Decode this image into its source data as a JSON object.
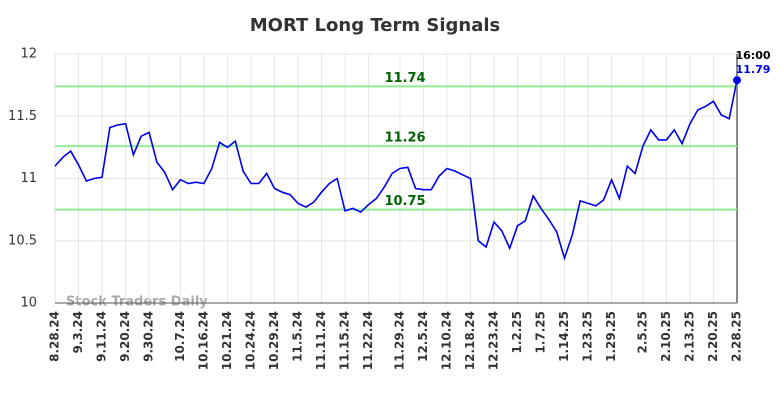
{
  "chart_data": {
    "type": "line",
    "title": "MORT Long Term Signals",
    "categories": [
      "8.28.24",
      null,
      null,
      "9.3.24",
      null,
      null,
      "9.11.24",
      null,
      null,
      "9.20.24",
      null,
      null,
      "9.30.24",
      null,
      null,
      null,
      "10.7.24",
      null,
      null,
      "10.16.24",
      null,
      null,
      "10.21.24",
      null,
      null,
      "10.24.24",
      null,
      null,
      "10.29.24",
      null,
      null,
      "11.5.24",
      null,
      null,
      "11.11.24",
      null,
      null,
      "11.15.24",
      null,
      null,
      "11.22.24",
      null,
      null,
      null,
      "11.29.24",
      null,
      null,
      "12.5.24",
      null,
      null,
      "12.10.24",
      null,
      null,
      "12.18.24",
      null,
      null,
      "12.23.24",
      null,
      null,
      "1.2.25",
      null,
      null,
      "1.7.25",
      null,
      null,
      "1.14.25",
      null,
      null,
      "1.23.25",
      null,
      null,
      "1.29.25",
      null,
      null,
      null,
      "2.5.25",
      null,
      null,
      "2.10.25",
      null,
      null,
      "2.13.25",
      null,
      null,
      "2.20.25",
      null,
      null,
      "2.28.25"
    ],
    "values": [
      11.1,
      11.17,
      11.22,
      11.11,
      10.98,
      11.0,
      11.01,
      11.41,
      11.43,
      11.44,
      11.19,
      11.34,
      11.37,
      11.13,
      11.05,
      10.91,
      10.99,
      10.96,
      10.97,
      10.96,
      11.08,
      11.29,
      11.25,
      11.3,
      11.06,
      10.96,
      10.96,
      11.04,
      10.92,
      10.89,
      10.87,
      10.8,
      10.77,
      10.81,
      10.89,
      10.96,
      11.0,
      10.74,
      10.76,
      10.73,
      10.79,
      10.84,
      10.93,
      11.04,
      11.08,
      11.09,
      10.92,
      10.91,
      10.91,
      11.02,
      11.08,
      11.06,
      11.03,
      11.0,
      10.5,
      10.45,
      10.65,
      10.58,
      10.44,
      10.62,
      10.66,
      10.86,
      10.76,
      10.67,
      10.57,
      10.36,
      10.55,
      10.82,
      10.8,
      10.78,
      10.83,
      10.99,
      10.84,
      11.1,
      11.04,
      11.26,
      11.39,
      11.31,
      11.31,
      11.39,
      11.28,
      11.44,
      11.55,
      11.58,
      11.62,
      11.51,
      11.48,
      11.79
    ],
    "color": "#0000ee",
    "ylim": [
      10,
      12
    ],
    "yticks": [
      10,
      10.5,
      11,
      11.5,
      12
    ],
    "grid": true,
    "hlines": [
      {
        "value": 11.74,
        "color": "#90ee90",
        "label_color": "#006400"
      },
      {
        "value": 11.26,
        "color": "#90ee90",
        "label_color": "#006400"
      },
      {
        "value": 10.75,
        "color": "#90ee90",
        "label_color": "#006400"
      }
    ],
    "last_time": "16:00",
    "watermark": "Stock Traders Daily"
  }
}
